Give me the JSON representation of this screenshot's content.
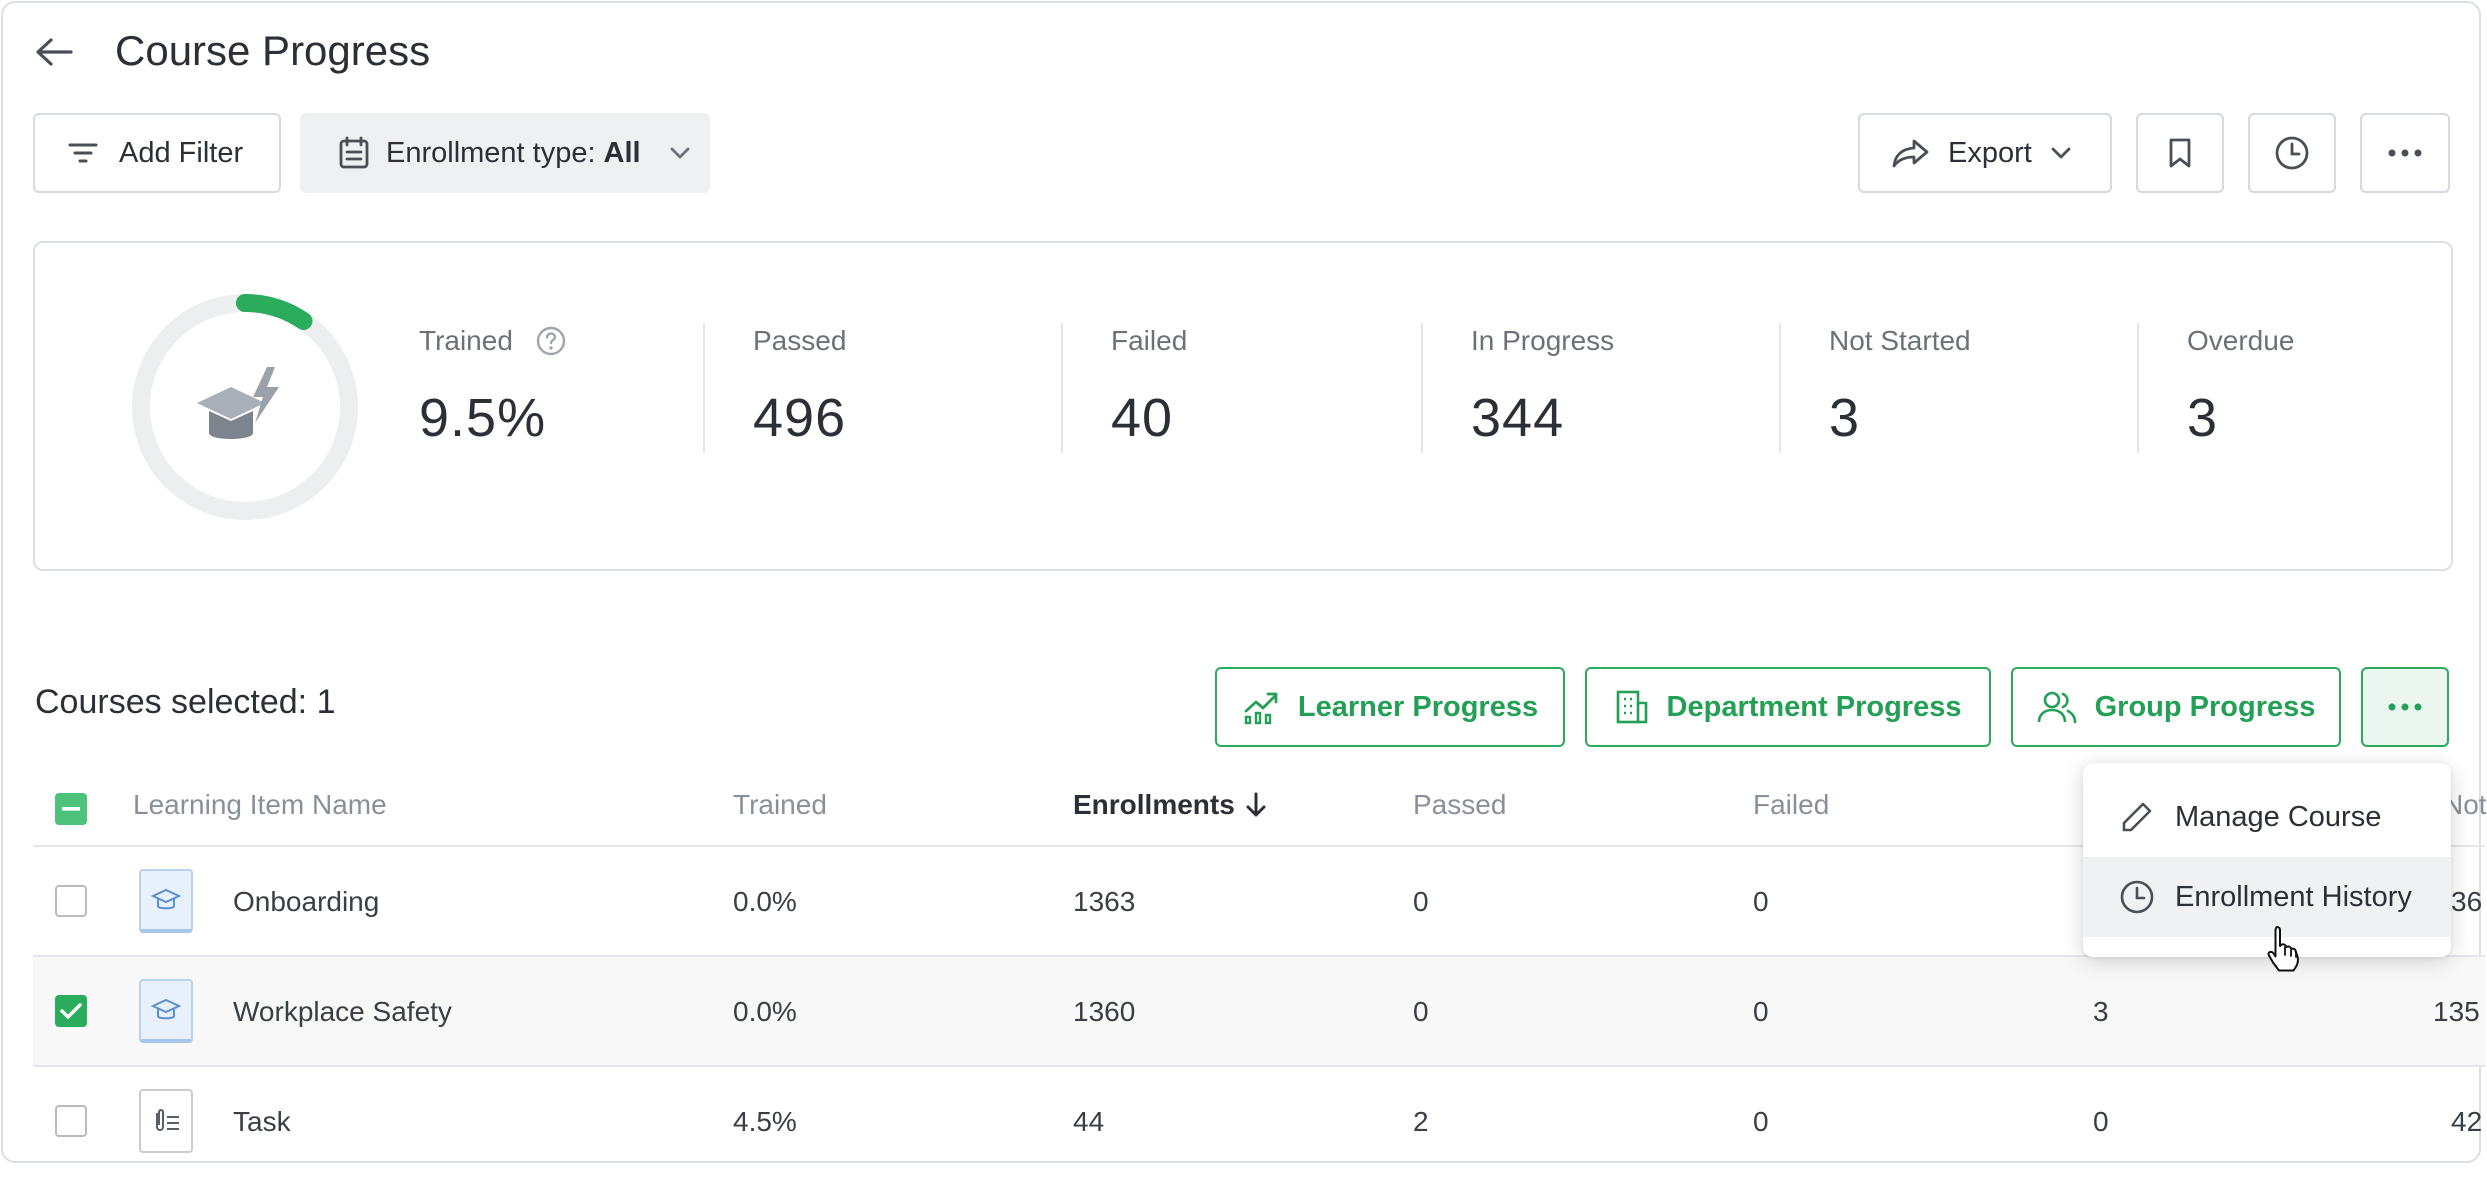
{
  "header": {
    "title": "Course Progress"
  },
  "toolbar": {
    "add_filter_label": "Add Filter",
    "enrollment_label": "Enrollment type:",
    "enrollment_value": "All",
    "export_label": "Export"
  },
  "stats": {
    "trained_fraction": 0.095,
    "items": [
      {
        "label": "Trained",
        "value": "9.5%"
      },
      {
        "label": "Passed",
        "value": "496"
      },
      {
        "label": "Failed",
        "value": "40"
      },
      {
        "label": "In Progress",
        "value": "344"
      },
      {
        "label": "Not Started",
        "value": "3"
      },
      {
        "label": "Overdue",
        "value": "3"
      }
    ]
  },
  "selection": {
    "text": "Courses selected: 1",
    "actions": [
      "Learner Progress",
      "Department Progress",
      "Group Progress"
    ]
  },
  "table": {
    "columns": [
      "Learning Item Name",
      "Trained",
      "Enrollments",
      "Passed",
      "Failed",
      "Not"
    ],
    "rows": [
      {
        "name": "Onboarding",
        "trained": "0.0%",
        "enrollments": "1363",
        "passed": "0",
        "failed": "0",
        "col6": "",
        "col7": "36",
        "checked": false
      },
      {
        "name": "Workplace Safety",
        "trained": "0.0%",
        "enrollments": "1360",
        "passed": "0",
        "failed": "0",
        "col6": "3",
        "col7": "135",
        "checked": true
      },
      {
        "name": "Task",
        "trained": "4.5%",
        "enrollments": "44",
        "passed": "2",
        "failed": "0",
        "col6": "0",
        "col7": "42",
        "checked": false
      }
    ]
  },
  "menu": {
    "items": [
      "Manage Course",
      "Enrollment History"
    ]
  },
  "colors": {
    "accent": "#2bab5c",
    "donut_track": "#eceef0"
  }
}
